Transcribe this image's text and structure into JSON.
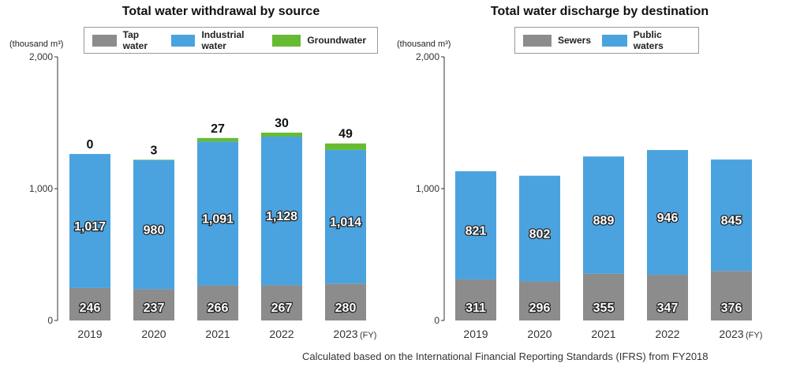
{
  "footnote": "Calculated based on the International Financial Reporting Standards (IFRS) from FY2018",
  "colors": {
    "tap": "#8c8c8c",
    "industrial": "#4aa3df",
    "ground": "#66bb33",
    "sewers": "#8c8c8c",
    "public": "#4aa3df"
  },
  "chart_data": [
    {
      "type": "bar",
      "stacked": true,
      "title": "Total water withdrawal by source",
      "ylabel": "(thousand m³)",
      "xlabel": "",
      "ylim": [
        0,
        2000
      ],
      "yticks": [
        "0",
        "1,000",
        "2,000"
      ],
      "categories": [
        "2019",
        "2020",
        "2021",
        "2022",
        "2023"
      ],
      "fy_suffix": "(FY)",
      "legend_position": "top",
      "series": [
        {
          "name": "Tap water",
          "color": "#8c8c8c",
          "values": [
            246,
            237,
            266,
            267,
            280
          ],
          "labels": [
            "246",
            "237",
            "266",
            "267",
            "280"
          ]
        },
        {
          "name": "Industrial water",
          "color": "#4aa3df",
          "values": [
            1017,
            980,
            1091,
            1128,
            1014
          ],
          "labels": [
            "1,017",
            "980",
            "1,091",
            "1,128",
            "1,014"
          ]
        },
        {
          "name": "Groundwater",
          "color": "#66bb33",
          "values": [
            0,
            3,
            27,
            30,
            49
          ],
          "labels": [
            "0",
            "3",
            "27",
            "30",
            "49"
          ]
        }
      ]
    },
    {
      "type": "bar",
      "stacked": true,
      "title": "Total water discharge by destination",
      "ylabel": "(thousand m³)",
      "xlabel": "",
      "ylim": [
        0,
        2000
      ],
      "yticks": [
        "0",
        "1,000",
        "2,000"
      ],
      "categories": [
        "2019",
        "2020",
        "2021",
        "2022",
        "2023"
      ],
      "fy_suffix": "(FY)",
      "legend_position": "top",
      "series": [
        {
          "name": "Sewers",
          "color": "#8c8c8c",
          "values": [
            311,
            296,
            355,
            347,
            376
          ],
          "labels": [
            "311",
            "296",
            "355",
            "347",
            "376"
          ]
        },
        {
          "name": "Public waters",
          "color": "#4aa3df",
          "values": [
            821,
            802,
            889,
            946,
            845
          ],
          "labels": [
            "821",
            "802",
            "889",
            "946",
            "845"
          ]
        }
      ]
    }
  ]
}
